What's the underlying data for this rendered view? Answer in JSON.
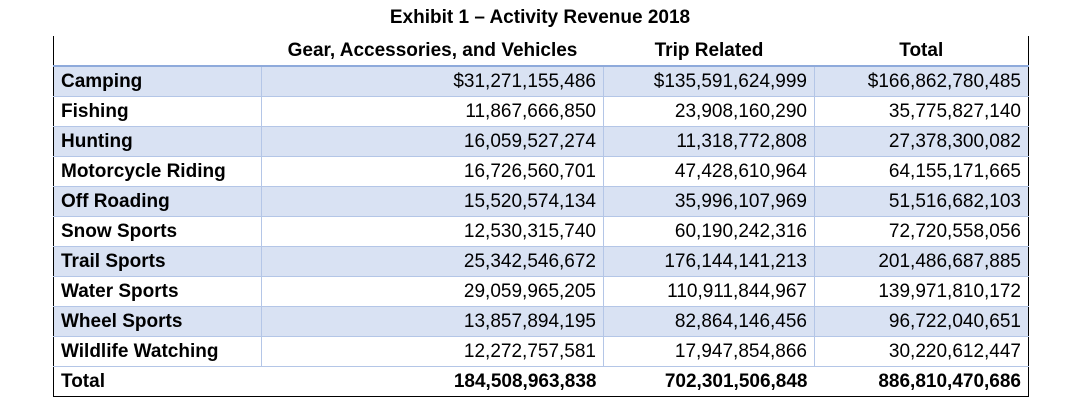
{
  "title": "Exhibit 1 – Activity Revenue 2018",
  "headers": [
    "",
    "Gear, Accessories, and Vehicles",
    "Trip Related",
    "Total"
  ],
  "rows": [
    {
      "label": "Camping",
      "gear": "$31,271,155,486",
      "trip": "$135,591,624,999",
      "total": "$166,862,780,485"
    },
    {
      "label": "Fishing",
      "gear": "11,867,666,850",
      "trip": "23,908,160,290",
      "total": "35,775,827,140"
    },
    {
      "label": "Hunting",
      "gear": "16,059,527,274",
      "trip": "11,318,772,808",
      "total": "27,378,300,082"
    },
    {
      "label": "Motorcycle Riding",
      "gear": "16,726,560,701",
      "trip": "47,428,610,964",
      "total": "64,155,171,665"
    },
    {
      "label": "Off Roading",
      "gear": "15,520,574,134",
      "trip": "35,996,107,969",
      "total": "51,516,682,103"
    },
    {
      "label": "Snow Sports",
      "gear": "12,530,315,740",
      "trip": "60,190,242,316",
      "total": "72,720,558,056"
    },
    {
      "label": "Trail Sports",
      "gear": "25,342,546,672",
      "trip": "176,144,141,213",
      "total": "201,486,687,885"
    },
    {
      "label": "Water Sports",
      "gear": "29,059,965,205",
      "trip": "110,911,844,967",
      "total": "139,971,810,172"
    },
    {
      "label": "Wheel Sports",
      "gear": "13,857,894,195",
      "trip": "82,864,146,456",
      "total": "96,722,040,651"
    },
    {
      "label": "Wildlife Watching",
      "gear": "12,272,757,581",
      "trip": "17,947,854,866",
      "total": "30,220,612,447"
    }
  ],
  "totals": {
    "label": "Total",
    "gear": "184,508,963,838",
    "trip": "702,301,506,848",
    "total": "886,810,470,686"
  },
  "colors": {
    "band": "#d9e2f3",
    "header_rule": "#8eaadb",
    "grid": "#b4c6e7"
  }
}
